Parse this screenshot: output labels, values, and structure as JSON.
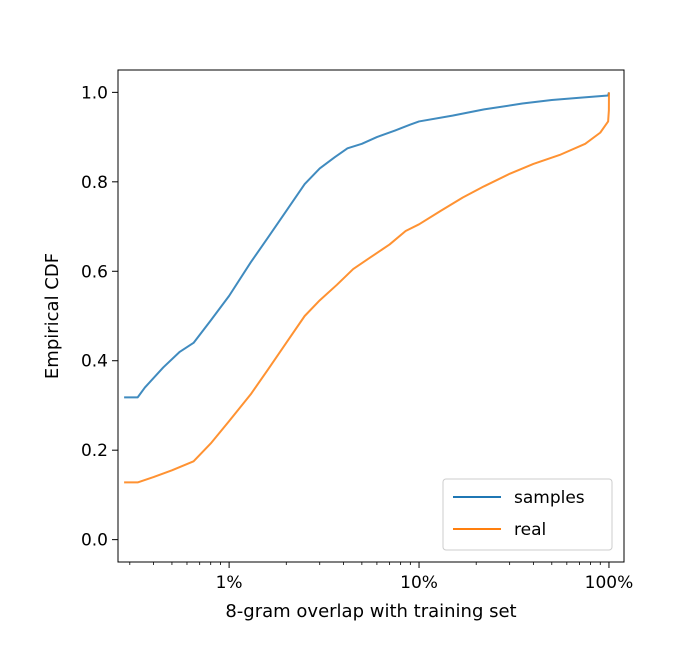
{
  "chart_data": {
    "type": "line",
    "title": "",
    "xlabel": "8-gram overlap with training set",
    "ylabel": "Empirical CDF",
    "xscale": "log",
    "xlim": [
      0.26,
      120
    ],
    "ylim": [
      -0.05,
      1.05
    ],
    "xticks": [
      {
        "value": 1,
        "label": "1%"
      },
      {
        "value": 10,
        "label": "10%"
      },
      {
        "value": 100,
        "label": "100%"
      }
    ],
    "yticks": [
      {
        "value": 0.0,
        "label": "0.0"
      },
      {
        "value": 0.2,
        "label": "0.2"
      },
      {
        "value": 0.4,
        "label": "0.4"
      },
      {
        "value": 0.6,
        "label": "0.6"
      },
      {
        "value": 0.8,
        "label": "0.8"
      },
      {
        "value": 1.0,
        "label": "1.0"
      }
    ],
    "grid": false,
    "legend_position": "lower-right",
    "series": [
      {
        "name": "samples",
        "color": "#1f77b4",
        "points": [
          [
            0.28,
            0.318
          ],
          [
            0.33,
            0.318
          ],
          [
            0.36,
            0.34
          ],
          [
            0.45,
            0.385
          ],
          [
            0.55,
            0.42
          ],
          [
            0.65,
            0.44
          ],
          [
            0.8,
            0.49
          ],
          [
            1.0,
            0.545
          ],
          [
            1.3,
            0.62
          ],
          [
            1.6,
            0.675
          ],
          [
            2.0,
            0.735
          ],
          [
            2.5,
            0.795
          ],
          [
            3.0,
            0.83
          ],
          [
            3.6,
            0.855
          ],
          [
            4.2,
            0.875
          ],
          [
            5.0,
            0.885
          ],
          [
            6.0,
            0.9
          ],
          [
            7.5,
            0.915
          ],
          [
            9.0,
            0.928
          ],
          [
            10.0,
            0.935
          ],
          [
            15.0,
            0.948
          ],
          [
            22.0,
            0.962
          ],
          [
            35.0,
            0.975
          ],
          [
            50.0,
            0.983
          ],
          [
            70.0,
            0.988
          ],
          [
            99.0,
            0.993
          ],
          [
            100.0,
            1.0
          ]
        ]
      },
      {
        "name": "real",
        "color": "#ff7f0e",
        "points": [
          [
            0.28,
            0.128
          ],
          [
            0.33,
            0.128
          ],
          [
            0.4,
            0.14
          ],
          [
            0.5,
            0.155
          ],
          [
            0.65,
            0.175
          ],
          [
            0.8,
            0.215
          ],
          [
            1.0,
            0.265
          ],
          [
            1.3,
            0.325
          ],
          [
            1.6,
            0.38
          ],
          [
            2.0,
            0.44
          ],
          [
            2.5,
            0.5
          ],
          [
            3.0,
            0.535
          ],
          [
            3.7,
            0.57
          ],
          [
            4.5,
            0.605
          ],
          [
            5.5,
            0.63
          ],
          [
            7.0,
            0.66
          ],
          [
            8.5,
            0.69
          ],
          [
            10.0,
            0.705
          ],
          [
            13.0,
            0.735
          ],
          [
            17.0,
            0.765
          ],
          [
            22.0,
            0.79
          ],
          [
            30.0,
            0.818
          ],
          [
            40.0,
            0.84
          ],
          [
            55.0,
            0.86
          ],
          [
            75.0,
            0.885
          ],
          [
            90.0,
            0.91
          ],
          [
            99.0,
            0.935
          ],
          [
            99.9,
            0.96
          ],
          [
            100.0,
            1.0
          ]
        ]
      }
    ]
  }
}
